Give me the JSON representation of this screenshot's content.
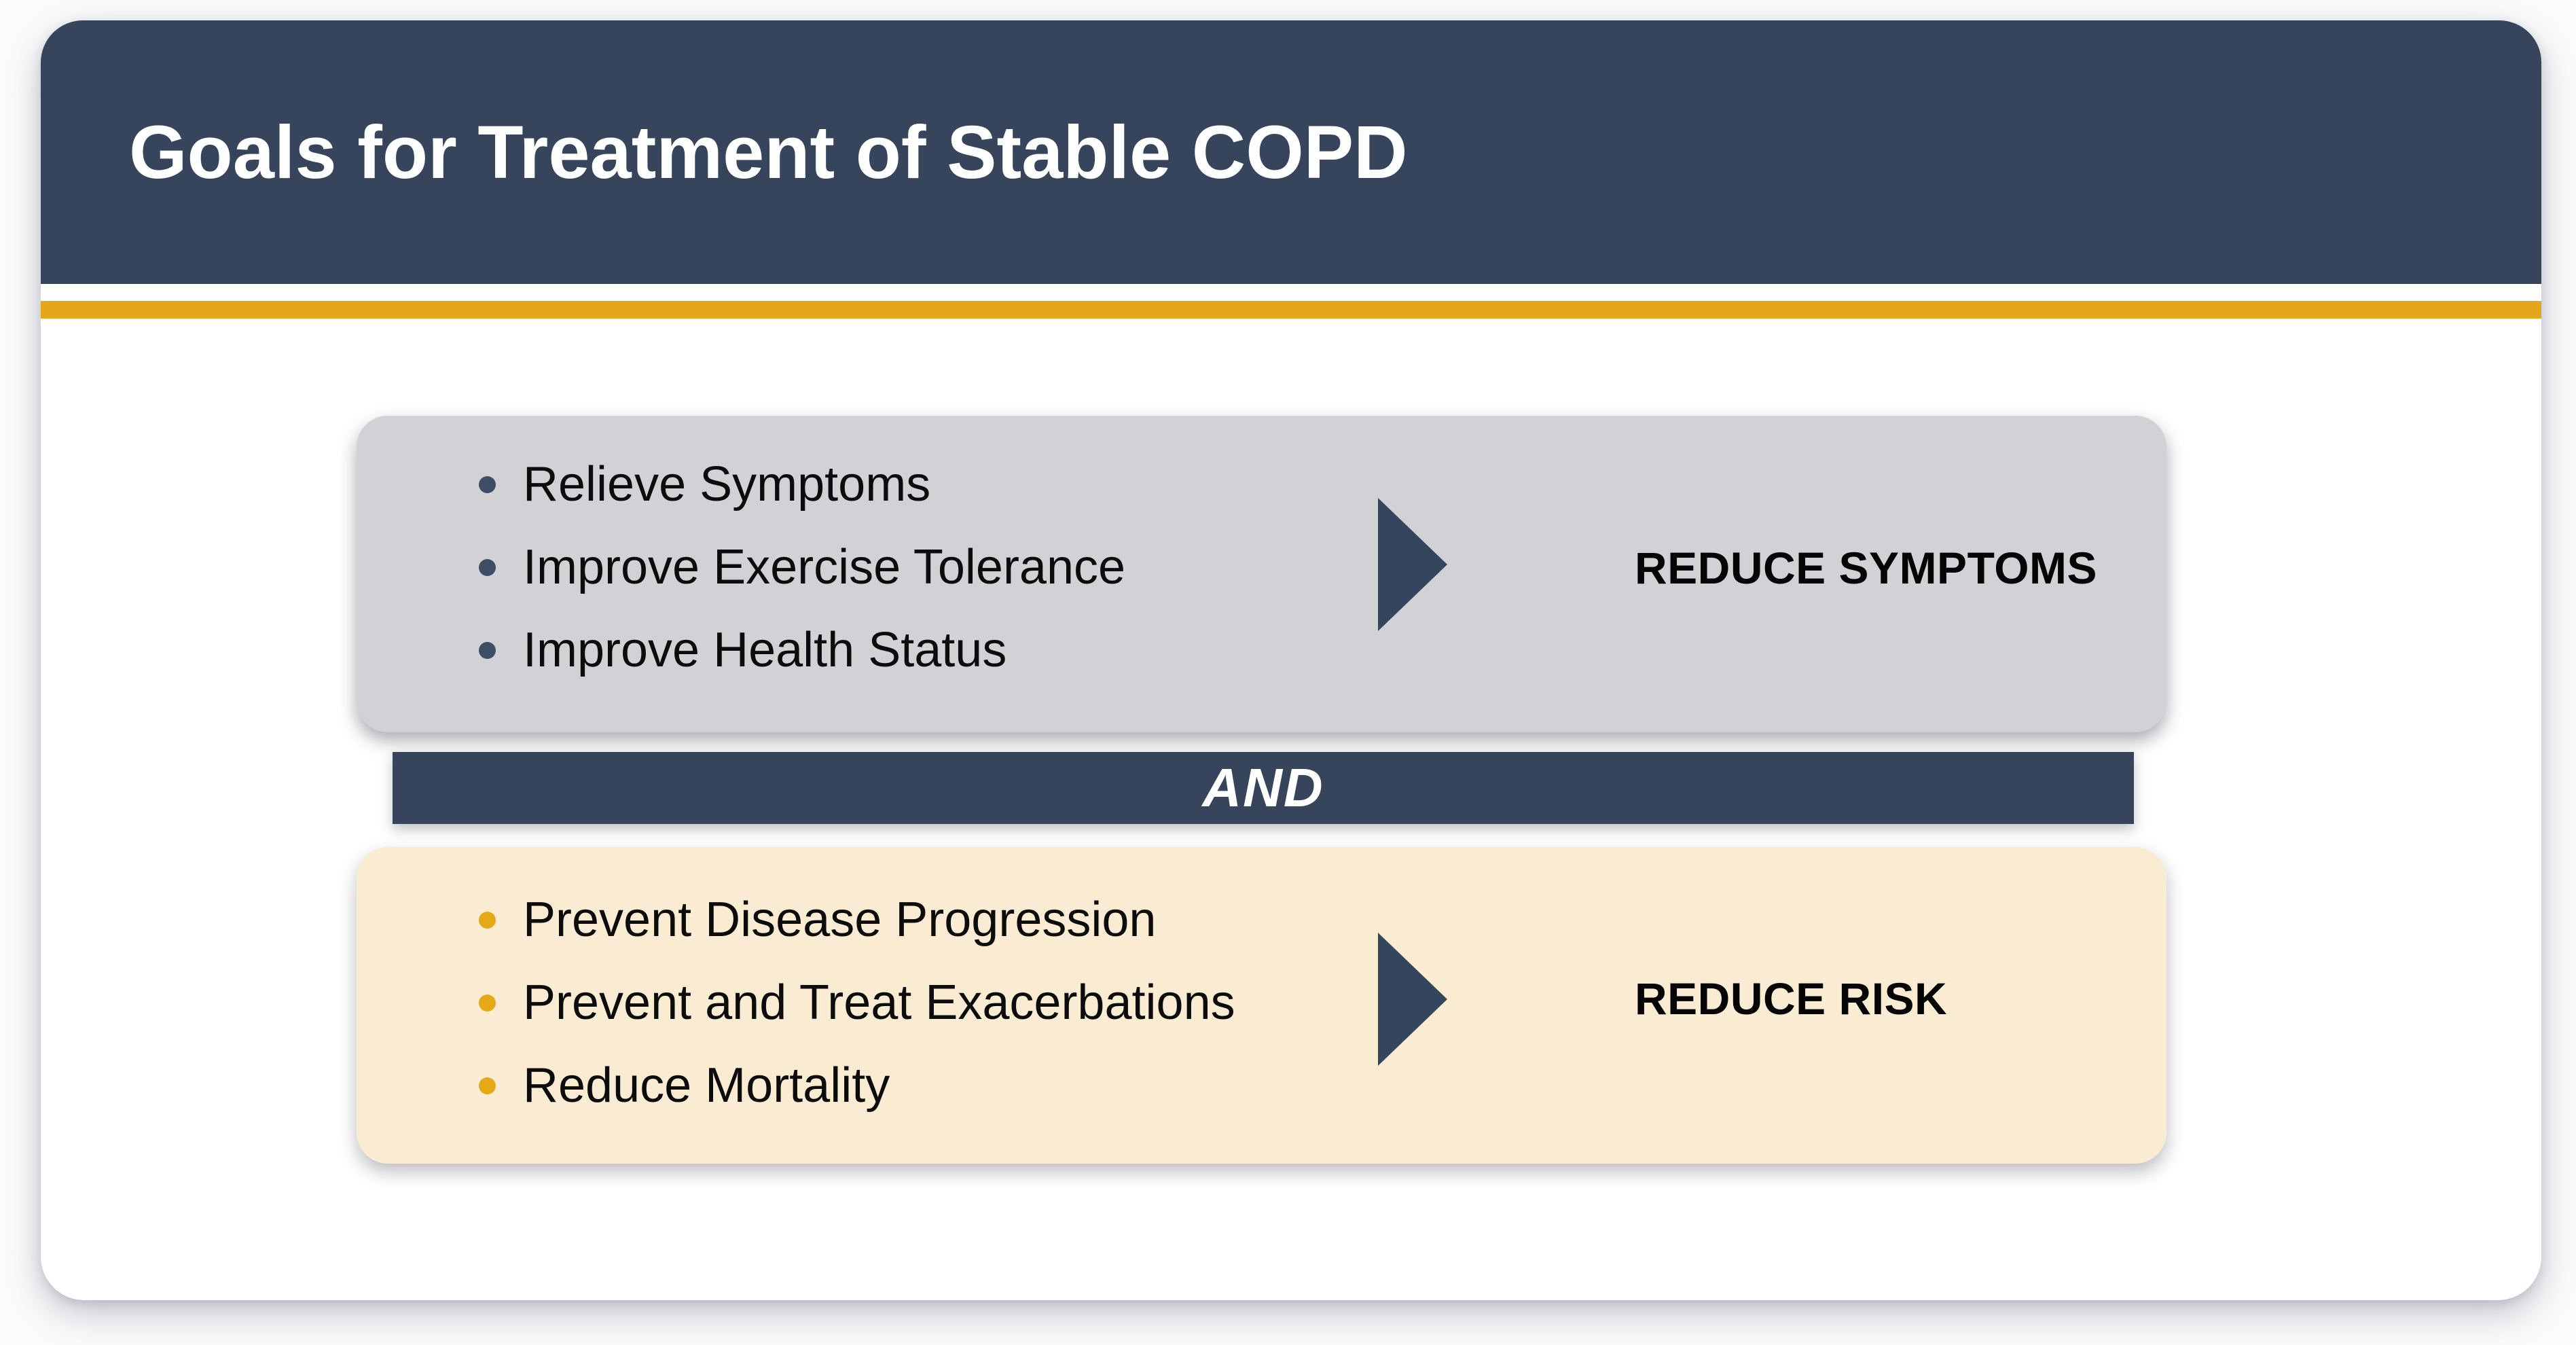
{
  "slide": {
    "title": "Goals for Treatment of Stable COPD",
    "and_connector": "AND",
    "symptoms_panel": {
      "bullets": [
        "Relieve Symptoms",
        "Improve Exercise Tolerance",
        "Improve Health Status"
      ],
      "outcome": "REDUCE SYMPTOMS"
    },
    "risk_panel": {
      "bullets": [
        "Prevent Disease Progression",
        "Prevent and Treat Exacerbations",
        "Reduce Mortality"
      ],
      "outcome": "REDUCE RISK"
    },
    "colors": {
      "header_navy": "#36455c",
      "gold_rule": "#e4a71b",
      "gray_panel": "#d1d1d6",
      "cream_panel": "#faecd2",
      "navy_bullet": "#3e4d66",
      "gold_bullet": "#e7a818",
      "arrow_navy": "#34455e"
    }
  }
}
